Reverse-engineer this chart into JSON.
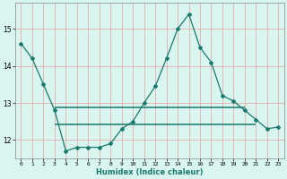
{
  "xlabel": "Humidex (Indice chaleur)",
  "x": [
    0,
    1,
    2,
    3,
    4,
    5,
    6,
    7,
    8,
    9,
    10,
    11,
    12,
    13,
    14,
    15,
    16,
    17,
    18,
    19,
    20,
    21,
    22,
    23
  ],
  "y": [
    14.6,
    14.2,
    13.5,
    12.8,
    11.7,
    11.8,
    11.8,
    11.8,
    11.9,
    12.3,
    12.5,
    13.0,
    13.45,
    14.2,
    15.0,
    15.4,
    14.5,
    14.1,
    13.2,
    13.05,
    12.8,
    12.55,
    12.3,
    12.35
  ],
  "hline1": 12.88,
  "hline2": 12.42,
  "hline1_xstart": 3,
  "hline1_xend": 20,
  "hline2_xstart": 3,
  "hline2_xend": 21,
  "line_color": "#1a7a6e",
  "bg_color": "#d8f5f0",
  "grid_color": "#e8a0a0",
  "ylim": [
    11.5,
    15.7
  ],
  "xlim": [
    -0.5,
    23.5
  ],
  "yticks": [
    12,
    13,
    14,
    15
  ],
  "xticks": [
    0,
    1,
    2,
    3,
    4,
    5,
    6,
    7,
    8,
    9,
    10,
    11,
    12,
    13,
    14,
    15,
    16,
    17,
    18,
    19,
    20,
    21,
    22,
    23
  ],
  "xtick_labels": [
    "0",
    "1",
    "2",
    "3",
    "4",
    "5",
    "6",
    "7",
    "8",
    "9",
    "10",
    "11",
    "12",
    "13",
    "14",
    "15",
    "16",
    "17",
    "18",
    "19",
    "20",
    "21",
    "22",
    "23"
  ]
}
